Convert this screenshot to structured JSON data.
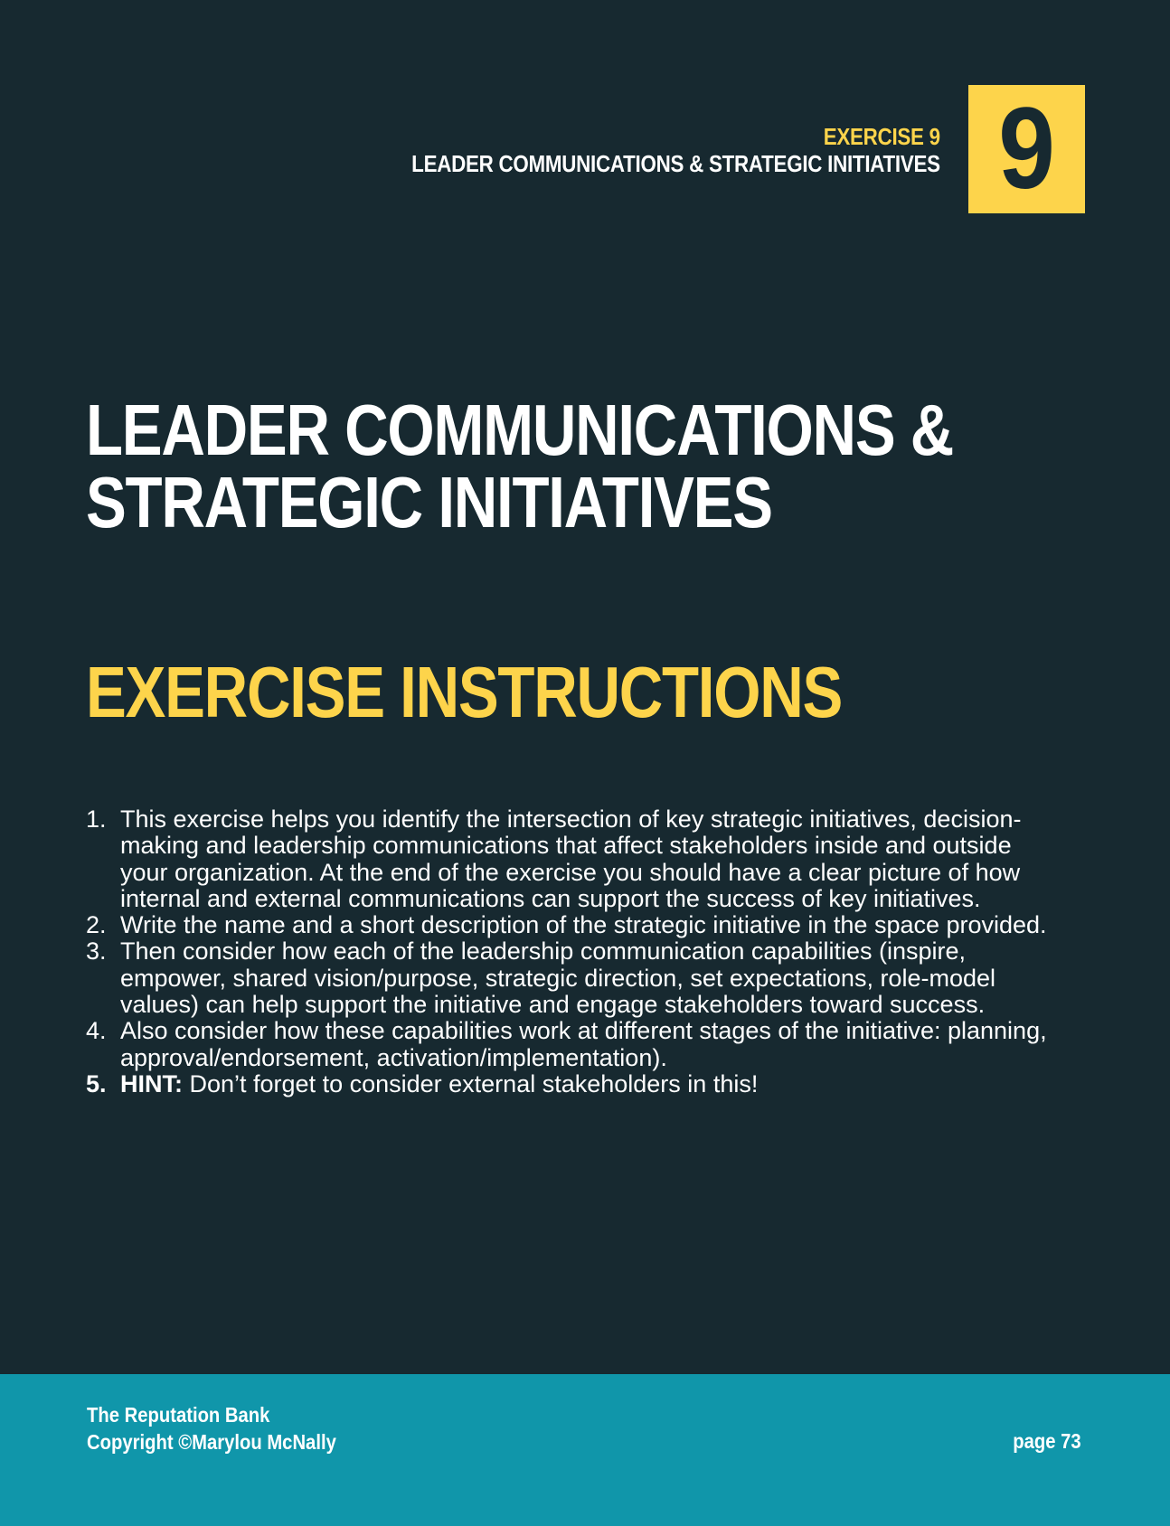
{
  "header": {
    "exercise_label": "EXERCISE 9",
    "subtitle": "LEADER COMMUNICATIONS & STRATEGIC INITIATIVES",
    "number": "9"
  },
  "main": {
    "title_line1": "LEADER COMMUNICATIONS &",
    "title_line2": "STRATEGIC INITIATIVES",
    "section_heading": "EXERCISE INSTRUCTIONS",
    "instructions": [
      {
        "num": "1.",
        "bold": "",
        "text": "This exercise helps you identify the intersection of key strategic initiatives, decision-making and leadership communications that affect stakeholders inside and outside your organization. At the end of the exercise you should have a clear picture of how internal and external communications can support the success of key initiatives."
      },
      {
        "num": "2.",
        "bold": "",
        "text": "Write the name and a short description of the strategic initiative in the space provided."
      },
      {
        "num": "3.",
        "bold": "",
        "text": "Then consider how each of the leadership communication capabilities (inspire, empower, shared vision/purpose, strategic direction, set expectations, role-model values) can help support the initiative and engage stakeholders toward success."
      },
      {
        "num": "4.",
        "bold": "",
        "text": "Also consider how these capabilities work at different stages of the initiative: planning, approval/endorsement, activation/implementation)."
      },
      {
        "num": "5.",
        "bold": "HINT:",
        "text": " Don’t forget to consider external stakeholders in this!"
      }
    ]
  },
  "footer": {
    "book_title": "The Reputation Bank",
    "copyright": "Copyright ©Marylou McNally",
    "page_label": "page 73"
  },
  "colors": {
    "background": "#172930",
    "accent": "#fdd44b",
    "footer": "#1096aa",
    "text": "#ffffff"
  }
}
